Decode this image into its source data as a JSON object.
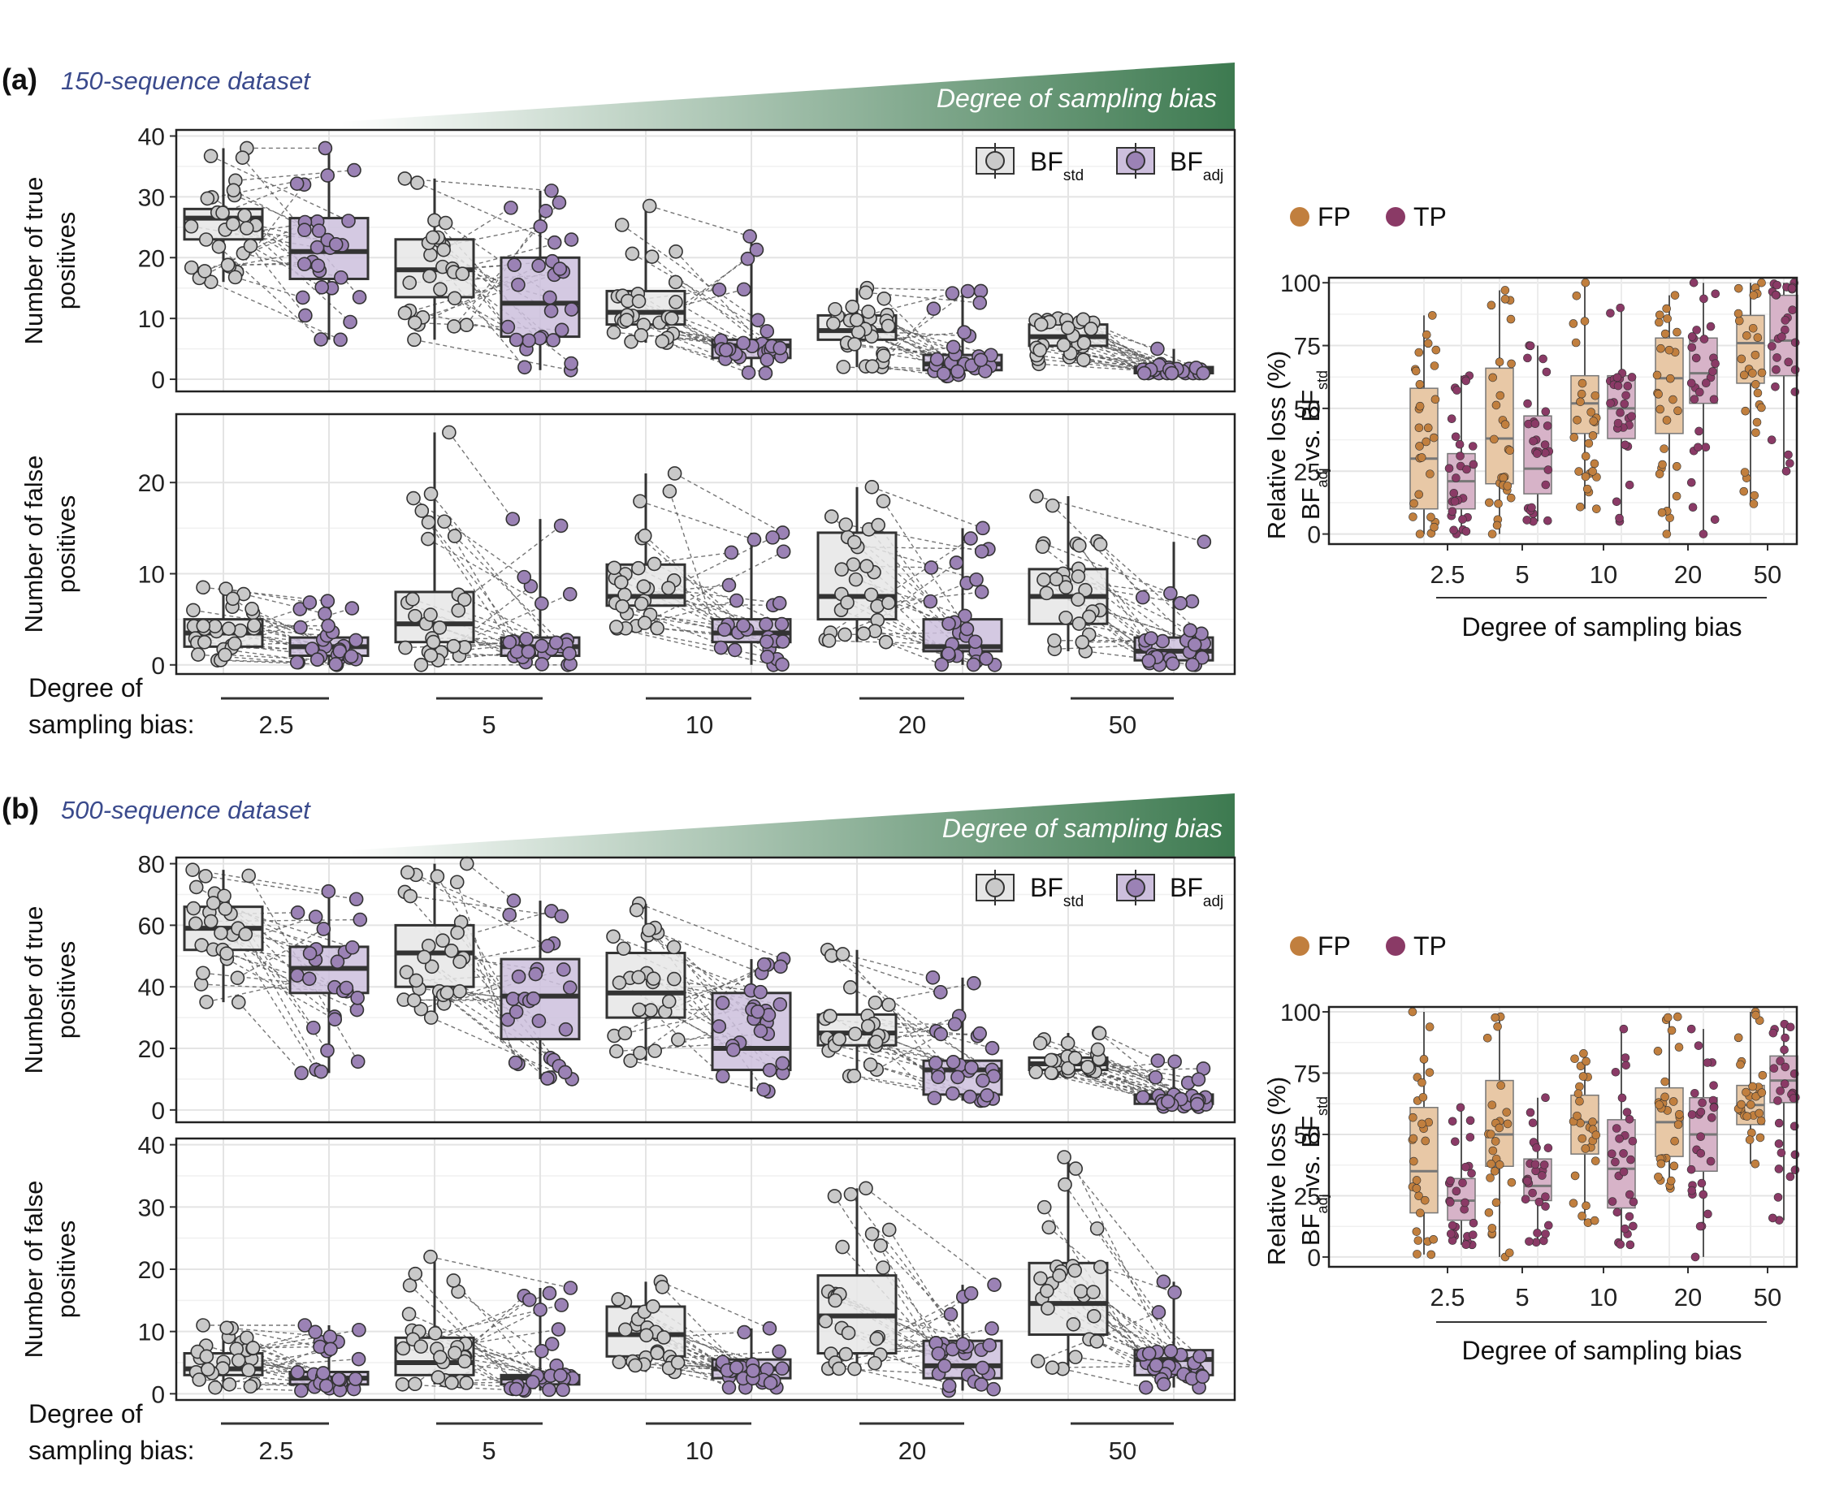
{
  "panels": [
    {
      "label": "(a)",
      "subtitle": "150-sequence dataset"
    },
    {
      "label": "(b)",
      "subtitle": "500-sequence dataset"
    }
  ],
  "bias_arrow_label": "Degree of sampling bias",
  "bottom_axis": {
    "line1": "Degree of",
    "line2": "sampling bias:"
  },
  "colors": {
    "std_fill": "#e6e6e6",
    "std_point": "#c9c9c9",
    "adj_fill": "#cdbfdd",
    "adj_point": "#9b82b5",
    "fp": "#c17f3e",
    "fp_fill": "#e8c8a6",
    "tp": "#8a3a66",
    "tp_fill": "#d7b3c8",
    "gradient_end": "#3d7a50",
    "subtitle": "#3a4a8c"
  },
  "legend": {
    "std": {
      "base": "BF",
      "sub": "std"
    },
    "adj": {
      "base": "BF",
      "sub": "adj"
    }
  },
  "right_legend": {
    "fp": "FP",
    "tp": "TP"
  },
  "right_axis": {
    "ylabel1": "Relative loss (%)",
    "ylabel2_parts": [
      "BF",
      "adj",
      " vs. BF",
      "std"
    ],
    "xlabel": "Degree of sampling bias"
  },
  "chart_data": [
    {
      "type": "box",
      "panel": "a-top",
      "ylabel": [
        "Number of true",
        "positives"
      ],
      "categories": [
        "2.5",
        "5",
        "10",
        "20",
        "50"
      ],
      "yticks": [
        0,
        10,
        20,
        30,
        40
      ],
      "ylim": [
        -2,
        41
      ],
      "series": [
        {
          "name": "BF_std",
          "q1": [
            23,
            13.5,
            9,
            6.5,
            5.5
          ],
          "median": [
            26.5,
            18,
            11,
            8,
            7
          ],
          "q3": [
            28,
            23,
            14.5,
            10.5,
            9
          ],
          "min": [
            16,
            6.5,
            6,
            2,
            2.5
          ],
          "max": [
            38,
            33,
            28.5,
            15,
            10
          ]
        },
        {
          "name": "BF_adj",
          "q1": [
            16.5,
            7,
            3.5,
            1.5,
            1
          ],
          "median": [
            21,
            12.5,
            5.5,
            2.5,
            1.5
          ],
          "q3": [
            26.5,
            20,
            6.5,
            4,
            2
          ],
          "min": [
            6.5,
            1.5,
            1,
            0.5,
            1
          ],
          "max": [
            38,
            31,
            23.5,
            14.5,
            5
          ]
        }
      ]
    },
    {
      "type": "box",
      "panel": "a-bottom",
      "ylabel": [
        "Number of false",
        "positives"
      ],
      "categories": [
        "2.5",
        "5",
        "10",
        "20",
        "50"
      ],
      "yticks": [
        0,
        10,
        20
      ],
      "ylim": [
        -1,
        27.5
      ],
      "series": [
        {
          "name": "BF_std",
          "q1": [
            2,
            2.5,
            6.5,
            5,
            4.5
          ],
          "median": [
            3.5,
            4.5,
            7.5,
            7.5,
            7.5
          ],
          "q3": [
            5,
            8,
            11,
            14.5,
            10.5
          ],
          "min": [
            0.5,
            0,
            4,
            2.5,
            1.5
          ],
          "max": [
            8.5,
            25.5,
            21,
            19.5,
            18.5
          ]
        },
        {
          "name": "BF_adj",
          "q1": [
            1,
            1,
            2.5,
            1.5,
            0.5
          ],
          "median": [
            2,
            2,
            3.5,
            2,
            1.5
          ],
          "q3": [
            3,
            3,
            5,
            5,
            3
          ],
          "min": [
            0,
            0,
            0,
            0,
            0
          ],
          "max": [
            7,
            16,
            14.5,
            15,
            13.5
          ]
        }
      ]
    },
    {
      "type": "box",
      "panel": "b-top",
      "ylabel": [
        "Number of true",
        "positives"
      ],
      "categories": [
        "2.5",
        "5",
        "10",
        "20",
        "50"
      ],
      "yticks": [
        0,
        20,
        40,
        60,
        80
      ],
      "ylim": [
        -4,
        82
      ],
      "series": [
        {
          "name": "BF_std",
          "q1": [
            52,
            40,
            30,
            21,
            13
          ],
          "median": [
            59,
            51,
            38,
            25,
            15
          ],
          "q3": [
            66,
            60,
            51,
            31,
            17
          ],
          "min": [
            35,
            30,
            16,
            11,
            12
          ],
          "max": [
            78,
            80,
            67,
            52,
            25
          ]
        },
        {
          "name": "BF_adj",
          "q1": [
            38,
            23,
            13,
            5,
            2
          ],
          "median": [
            46,
            37,
            20,
            13,
            4
          ],
          "q3": [
            53,
            49,
            38,
            16,
            5
          ],
          "min": [
            12,
            10,
            6,
            3,
            1
          ],
          "max": [
            71,
            68,
            49,
            43,
            16
          ]
        }
      ]
    },
    {
      "type": "box",
      "panel": "b-bottom",
      "ylabel": [
        "Number of false",
        "positives"
      ],
      "categories": [
        "2.5",
        "5",
        "10",
        "20",
        "50"
      ],
      "yticks": [
        0,
        10,
        20,
        30,
        40
      ],
      "ylim": [
        -1,
        41
      ],
      "series": [
        {
          "name": "BF_std",
          "q1": [
            3,
            3,
            6,
            6.5,
            9.5
          ],
          "median": [
            4,
            5,
            9.5,
            12.5,
            14.5
          ],
          "q3": [
            6.5,
            9,
            14,
            19,
            21
          ],
          "min": [
            1,
            1.5,
            3.5,
            4,
            4
          ],
          "max": [
            11,
            22,
            18,
            33,
            38
          ]
        },
        {
          "name": "BF_adj",
          "q1": [
            1.5,
            1.5,
            2.5,
            2.5,
            3
          ],
          "median": [
            2.5,
            2.5,
            4,
            4.5,
            5.5
          ],
          "q3": [
            3.5,
            3,
            5.5,
            8.5,
            7
          ],
          "min": [
            0.5,
            0.5,
            1,
            0.5,
            1
          ],
          "max": [
            11,
            17,
            10.5,
            17.5,
            18
          ]
        }
      ]
    },
    {
      "type": "box",
      "panel": "a-right",
      "ylabel": "Relative loss (%)",
      "categories": [
        "2.5",
        "5",
        "10",
        "20",
        "50"
      ],
      "yticks": [
        0,
        25,
        50,
        75,
        100
      ],
      "yticklabels": [
        "0",
        "25",
        "50",
        "75",
        "100"
      ],
      "ylim": [
        -4,
        102
      ],
      "xlabel": "Degree of sampling bias",
      "series": [
        {
          "name": "FP",
          "q1": [
            10,
            20,
            40,
            40,
            60
          ],
          "median": [
            30,
            38,
            52,
            62,
            76
          ],
          "q3": [
            58,
            66,
            63,
            78,
            87
          ],
          "min": [
            0,
            0,
            10,
            0,
            12
          ],
          "max": [
            87,
            97,
            100,
            95,
            100
          ]
        },
        {
          "name": "TP",
          "q1": [
            10,
            16,
            38,
            52,
            63
          ],
          "median": [
            21,
            26,
            50,
            64,
            77
          ],
          "q3": [
            32,
            47,
            63,
            78,
            95
          ],
          "min": [
            0,
            5,
            5,
            0,
            25
          ],
          "max": [
            63,
            75,
            90,
            100,
            100
          ]
        }
      ]
    },
    {
      "type": "box",
      "panel": "b-right",
      "ylabel": "Relative loss (%)",
      "categories": [
        "2.5",
        "5",
        "10",
        "20",
        "50"
      ],
      "yticks": [
        0,
        25,
        50,
        75,
        100
      ],
      "yticklabels": [
        "0",
        "25",
        "50",
        "75",
        "100"
      ],
      "ylim": [
        -4,
        102
      ],
      "xlabel": "Degree of sampling bias",
      "series": [
        {
          "name": "FP",
          "q1": [
            18,
            37,
            42,
            41,
            54
          ],
          "median": [
            35,
            50,
            55,
            55,
            62
          ],
          "q3": [
            61,
            72,
            66,
            69,
            70
          ],
          "min": [
            1,
            0,
            14,
            28,
            38
          ],
          "max": [
            100,
            98,
            83,
            98,
            100
          ]
        },
        {
          "name": "TP",
          "q1": [
            15,
            23,
            20,
            35,
            63
          ],
          "median": [
            23,
            29,
            36,
            50,
            72
          ],
          "q3": [
            32,
            40,
            56,
            65,
            82
          ],
          "min": [
            5,
            6,
            5,
            0,
            15
          ],
          "max": [
            61,
            65,
            93,
            93,
            95
          ]
        }
      ]
    }
  ]
}
